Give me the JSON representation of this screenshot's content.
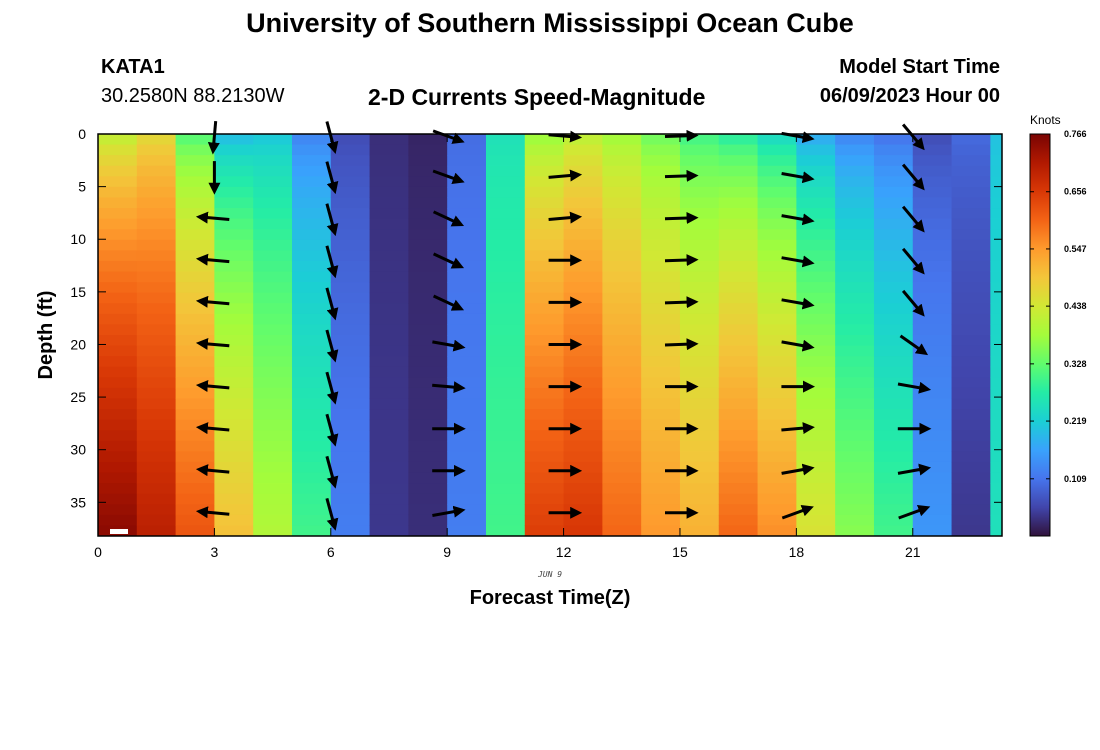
{
  "header": {
    "title": "University of Southern Mississippi Ocean Cube",
    "station": "KATA1",
    "coords": "30.2580N  88.2130W",
    "plot_title": "2-D Currents Speed-Magnitude",
    "start_label": "Model Start Time",
    "start_value": "06/09/2023 Hour 00"
  },
  "footer": {
    "title": "University of Southern Mississippi Ocean Cube"
  },
  "chart_data": {
    "type": "heatmap",
    "xlabel": "Forecast Time(Z)",
    "ylabel": "Depth (ft)",
    "date_label": "JUN 9",
    "xlim": [
      0,
      23.3
    ],
    "ylim": [
      38.2,
      0
    ],
    "x_ticks": [
      0,
      3,
      6,
      9,
      12,
      15,
      18,
      21
    ],
    "y_ticks": [
      0,
      5,
      10,
      15,
      20,
      25,
      30,
      35
    ],
    "colorbar": {
      "units": "Knots",
      "min": 0,
      "max": 0.766,
      "ticks": [
        "0.766",
        "0.656",
        "0.547",
        "0.438",
        "0.328",
        "0.219",
        "0.109"
      ],
      "colors": [
        "#30123b",
        "#4145ab",
        "#4675ed",
        "#39a2fc",
        "#1bcfd4",
        "#24eca6",
        "#61fc6c",
        "#a4fc3b",
        "#d1e834",
        "#f3c63a",
        "#fe9b2d",
        "#f36315",
        "#d93806",
        "#b11901",
        "#7a0403"
      ]
    },
    "hours": [
      0,
      1,
      2,
      3,
      4,
      5,
      6,
      7,
      8,
      9,
      10,
      11,
      12,
      13,
      14,
      15,
      16,
      17,
      18,
      19,
      20,
      21,
      22,
      23
    ],
    "speed_top_knots": [
      0.4,
      0.45,
      0.3,
      0.18,
      0.2,
      0.12,
      0.06,
      0.03,
      0.02,
      0.1,
      0.25,
      0.36,
      0.4,
      0.37,
      0.33,
      0.29,
      0.26,
      0.22,
      0.16,
      0.12,
      0.1,
      0.06,
      0.1,
      0.2
    ],
    "speed_bottom_knots": [
      0.75,
      0.7,
      0.62,
      0.5,
      0.4,
      0.3,
      0.12,
      0.04,
      0.03,
      0.12,
      0.3,
      0.65,
      0.66,
      0.6,
      0.55,
      0.52,
      0.6,
      0.56,
      0.45,
      0.36,
      0.3,
      0.15,
      0.04,
      0.25
    ],
    "vectors": {
      "hours": [
        3,
        6,
        9,
        12,
        15,
        18,
        21
      ],
      "depths_ft": [
        0,
        4,
        8,
        12,
        16,
        20,
        24,
        28,
        32,
        36
      ],
      "direction_deg": [
        [
          185,
          180,
          275,
          275,
          275,
          275,
          275,
          275,
          275,
          275
        ],
        [
          165,
          165,
          165,
          165,
          165,
          165,
          165,
          165,
          165,
          165
        ],
        [
          110,
          110,
          115,
          115,
          115,
          100,
          95,
          90,
          90,
          80
        ],
        [
          95,
          85,
          85,
          90,
          90,
          90,
          90,
          90,
          90,
          90
        ],
        [
          88,
          88,
          88,
          88,
          88,
          88,
          90,
          90,
          90,
          90
        ],
        [
          100,
          100,
          100,
          100,
          100,
          100,
          90,
          85,
          80,
          70
        ],
        [
          140,
          140,
          140,
          140,
          140,
          125,
          100,
          90,
          80,
          70
        ]
      ]
    }
  }
}
